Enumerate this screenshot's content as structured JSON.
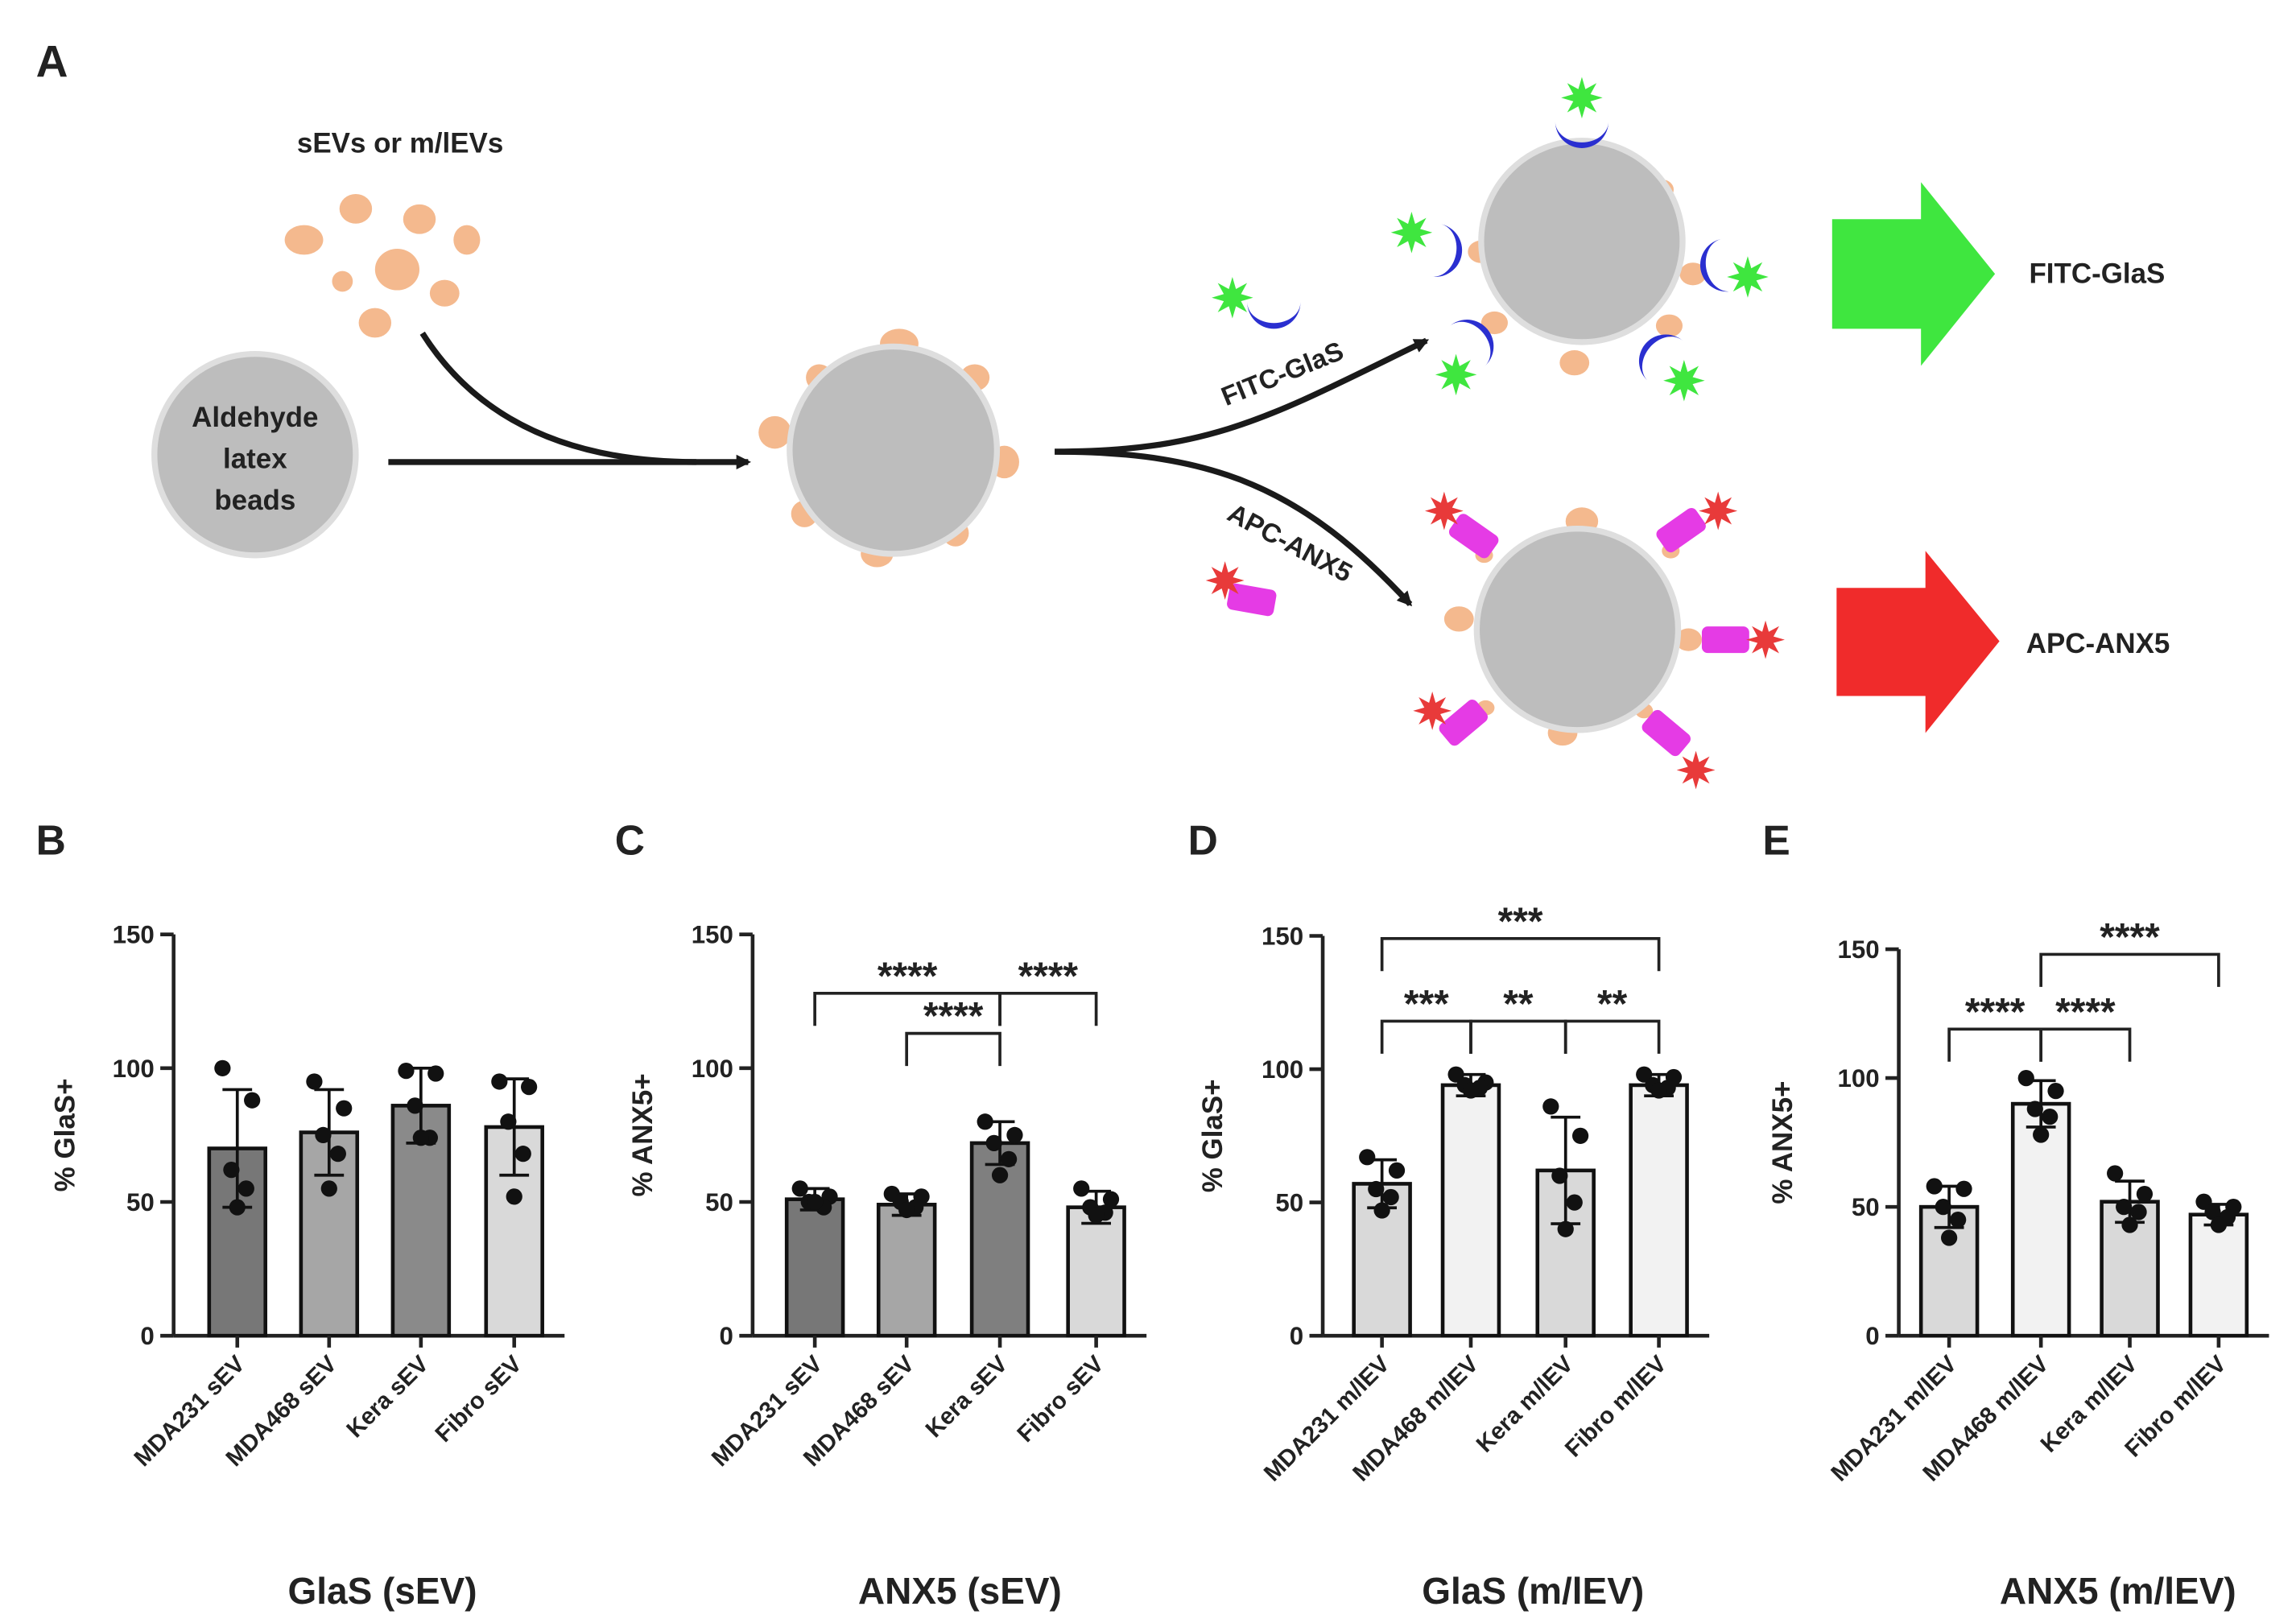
{
  "panels": [
    "A",
    "B",
    "C",
    "D",
    "E"
  ],
  "diagram": {
    "ev_label": "sEVs or m/lEVs",
    "bead_label": [
      "Aldehyde",
      "latex",
      "beads"
    ],
    "branch_top": "FITC-GlaS",
    "branch_bottom": "APC-ANX5",
    "output_top": "FITC-GlaS",
    "output_bottom": "APC-ANX5"
  },
  "chart_data": [
    {
      "type": "bar",
      "title": "GlaS (sEV)",
      "ylabel": "% GlaS+",
      "categories": [
        "MDA231 sEV",
        "MDA468 sEV",
        "Kera sEV",
        "Fibro sEV"
      ],
      "values": [
        70,
        76,
        86,
        78
      ],
      "errors": [
        22,
        16,
        14,
        18
      ],
      "points": [
        [
          100,
          88,
          62,
          55,
          48
        ],
        [
          95,
          85,
          75,
          68,
          55
        ],
        [
          99,
          98,
          86,
          74,
          74
        ],
        [
          95,
          93,
          80,
          68,
          52
        ]
      ],
      "colors": [
        "#777777",
        "#a6a6a6",
        "#8a8a8a",
        "#d9d9d9"
      ],
      "ylim": [
        0,
        150
      ],
      "yticks": [
        0,
        50,
        100,
        150
      ],
      "significance": []
    },
    {
      "type": "bar",
      "title": "ANX5 (sEV)",
      "ylabel": "% ANX5+",
      "categories": [
        "MDA231 sEV",
        "MDA468 sEV",
        "Kera sEV",
        "Fibro sEV"
      ],
      "values": [
        51,
        49,
        72,
        48
      ],
      "errors": [
        4,
        4,
        8,
        6
      ],
      "points": [
        [
          55,
          52,
          50,
          48,
          50
        ],
        [
          53,
          52,
          50,
          48,
          47
        ],
        [
          80,
          75,
          72,
          66,
          60
        ],
        [
          55,
          51,
          48,
          46,
          45
        ]
      ],
      "colors": [
        "#777777",
        "#a6a6a6",
        "#7f7f7f",
        "#d9d9d9"
      ],
      "ylim": [
        0,
        150
      ],
      "yticks": [
        0,
        50,
        100,
        150
      ],
      "significance": [
        {
          "from": 0,
          "to": 2,
          "y": 128,
          "label": "****"
        },
        {
          "from": 2,
          "to": 3,
          "y": 128,
          "label": "****"
        },
        {
          "from": 1,
          "to": 2,
          "y": 113,
          "label": "****"
        }
      ]
    },
    {
      "type": "bar",
      "title": "GlaS (m/lEV)",
      "ylabel": "% GlaS+",
      "categories": [
        "MDA231 m/lEV",
        "MDA468 m/lEV",
        "Kera m/lEV",
        "Fibro m/lEV"
      ],
      "values": [
        57,
        94,
        62,
        94
      ],
      "errors": [
        9,
        4,
        20,
        4
      ],
      "points": [
        [
          67,
          62,
          55,
          52,
          47
        ],
        [
          98,
          95,
          94,
          93,
          92
        ],
        [
          86,
          75,
          60,
          50,
          40
        ],
        [
          98,
          97,
          94,
          93,
          92
        ]
      ],
      "colors": [
        "#d9d9d9",
        "#f2f2f2",
        "#d9d9d9",
        "#f2f2f2"
      ],
      "ylim": [
        0,
        150
      ],
      "yticks": [
        0,
        50,
        100,
        150
      ],
      "significance": [
        {
          "from": 0,
          "to": 3,
          "y": 149,
          "label": "***"
        },
        {
          "from": 0,
          "to": 1,
          "y": 118,
          "label": "***"
        },
        {
          "from": 1,
          "to": 2,
          "y": 118,
          "label": "**"
        },
        {
          "from": 2,
          "to": 3,
          "y": 118,
          "label": "**"
        }
      ]
    },
    {
      "type": "bar",
      "title": "ANX5 (m/lEV)",
      "ylabel": "% ANX5+",
      "categories": [
        "MDA231 m/lEV",
        "MDA468 m/lEV",
        "Kera m/lEV",
        "Fibro m/lEV"
      ],
      "values": [
        50,
        90,
        52,
        47
      ],
      "errors": [
        8,
        9,
        8,
        4
      ],
      "points": [
        [
          58,
          57,
          50,
          45,
          38
        ],
        [
          100,
          95,
          88,
          85,
          78
        ],
        [
          63,
          55,
          50,
          48,
          43
        ],
        [
          52,
          50,
          48,
          46,
          43
        ]
      ],
      "colors": [
        "#d9d9d9",
        "#f2f2f2",
        "#d9d9d9",
        "#f2f2f2"
      ],
      "ylim": [
        0,
        150
      ],
      "yticks": [
        0,
        50,
        100,
        150
      ],
      "significance": [
        {
          "from": 1,
          "to": 3,
          "y": 148,
          "label": "****"
        },
        {
          "from": 0,
          "to": 1,
          "y": 119,
          "label": "****"
        },
        {
          "from": 1,
          "to": 2,
          "y": 119,
          "label": "****"
        }
      ]
    }
  ]
}
